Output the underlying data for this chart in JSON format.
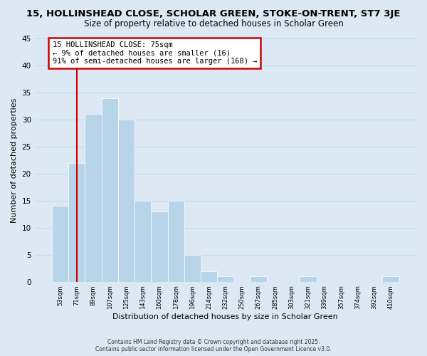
{
  "title1": "15, HOLLINSHEAD CLOSE, SCHOLAR GREEN, STOKE-ON-TRENT, ST7 3JE",
  "title2": "Size of property relative to detached houses in Scholar Green",
  "xlabel": "Distribution of detached houses by size in Scholar Green",
  "ylabel": "Number of detached properties",
  "bar_labels": [
    "53sqm",
    "71sqm",
    "89sqm",
    "107sqm",
    "125sqm",
    "143sqm",
    "160sqm",
    "178sqm",
    "196sqm",
    "214sqm",
    "232sqm",
    "250sqm",
    "267sqm",
    "285sqm",
    "303sqm",
    "321sqm",
    "339sqm",
    "357sqm",
    "374sqm",
    "392sqm",
    "410sqm"
  ],
  "bar_heights": [
    14,
    22,
    31,
    34,
    30,
    15,
    13,
    15,
    5,
    2,
    1,
    0,
    1,
    0,
    0,
    1,
    0,
    0,
    0,
    0,
    1
  ],
  "bar_color": "#b8d4e8",
  "bar_edge_color": "#b8d4e8",
  "vline_x": 1.0,
  "vline_color": "#cc0000",
  "ylim": [
    0,
    45
  ],
  "yticks": [
    0,
    5,
    10,
    15,
    20,
    25,
    30,
    35,
    40,
    45
  ],
  "annotation_title": "15 HOLLINSHEAD CLOSE: 75sqm",
  "annotation_line1": "← 9% of detached houses are smaller (16)",
  "annotation_line2": "91% of semi-detached houses are larger (168) →",
  "annotation_box_color": "#ffffff",
  "annotation_box_edge": "#cc0000",
  "footer1": "Contains HM Land Registry data © Crown copyright and database right 2025.",
  "footer2": "Contains public sector information licensed under the Open Government Licence v3.0.",
  "bg_color": "#dce9f5",
  "plot_bg_color": "#dce9f5",
  "grid_color": "#c0d8f0",
  "title_fontsize": 9.5,
  "subtitle_fontsize": 8.5
}
